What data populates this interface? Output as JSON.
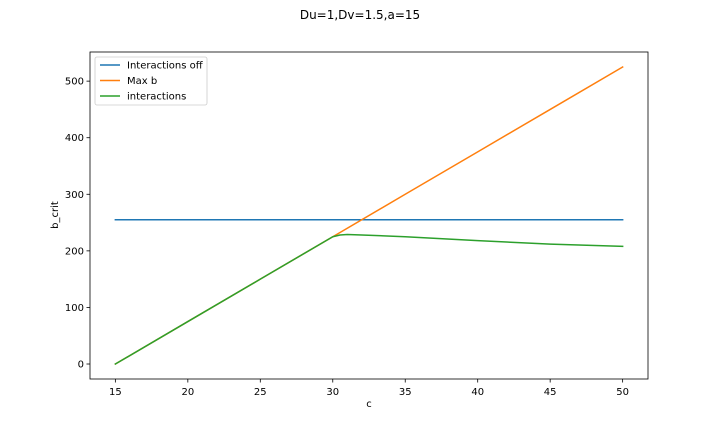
{
  "chart_data": {
    "type": "line",
    "title": "Du=1,Dv=1.5,a=15",
    "xlabel": "c",
    "ylabel": "b_crit",
    "xlim": [
      13.25,
      51.75
    ],
    "ylim": [
      -26.5,
      551.5
    ],
    "xticks": [
      15,
      20,
      25,
      30,
      35,
      40,
      45,
      50
    ],
    "yticks": [
      0,
      100,
      200,
      300,
      400,
      500
    ],
    "grid": false,
    "legend_position": "upper left",
    "series": [
      {
        "name": "Interactions off",
        "color": "#1f77b4",
        "x": [
          15,
          50
        ],
        "y": [
          255,
          255
        ]
      },
      {
        "name": "Max b",
        "color": "#ff7f0e",
        "x": [
          15,
          20,
          25,
          30,
          35,
          40,
          45,
          50
        ],
        "y": [
          0,
          75,
          150,
          225,
          300,
          375,
          450,
          525
        ]
      },
      {
        "name": "interactions",
        "color": "#2ca02c",
        "x": [
          15,
          20,
          25,
          30,
          30.5,
          31,
          32,
          35,
          40,
          45,
          50
        ],
        "y": [
          0,
          75,
          150,
          225,
          228,
          229,
          228,
          225,
          218,
          212,
          208
        ]
      }
    ]
  }
}
